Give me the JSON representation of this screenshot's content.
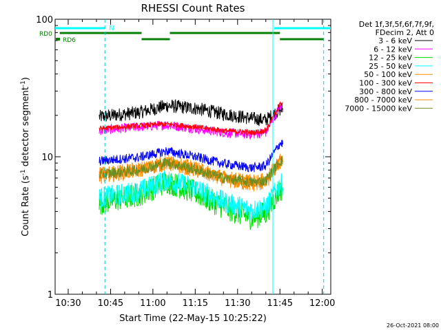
{
  "chart_data": {
    "type": "line",
    "title": "RHESSI Count Rates",
    "xlabel": "Start Time (22-May-15 10:25:22)",
    "ylabel_main": "Count Rate (s",
    "ylabel_exp1": "-1",
    "ylabel_mid": " detector segment",
    "ylabel_exp2": "-1",
    "ylabel_end": ")",
    "yscale": "log",
    "ylim": [
      1,
      100
    ],
    "xlim": [
      "10:25:22",
      "12:03:00"
    ],
    "x_ticks": [
      "10:30",
      "10:45",
      "11:00",
      "11:15",
      "11:30",
      "11:45",
      "12:00"
    ],
    "y_ticks": [
      "1",
      "10",
      "100"
    ],
    "legend_header": [
      "Det 1f,3f,5f,6f,7f,9f,",
      "FDecim 2, Att 0"
    ],
    "legend_position": "right",
    "footer_date": "26-Oct-2021 08:00",
    "data_start": "10:41:00",
    "data_end": "11:46:00",
    "night_intervals": [
      [
        "10:25:22",
        "10:43:00"
      ],
      [
        "11:43:00",
        "12:03:00"
      ]
    ],
    "night_label": "N",
    "attenuator_lines": [
      "10:43:00",
      "12:00:30"
    ],
    "cyan_solid_line": "11:42:30",
    "rd0_label": "RD0",
    "rd6_label": "RD6",
    "rd0_segments": [
      [
        "10:27:00",
        "10:56:00"
      ],
      [
        "11:06:00",
        "11:45:00"
      ]
    ],
    "rd6_segments": [
      [
        "10:56:00",
        "11:06:00"
      ],
      [
        "11:45:00",
        "12:00:30"
      ]
    ],
    "series": [
      {
        "name": "3 - 6 keV",
        "color": "#000000",
        "key_x": [
          "10:41",
          "10:55",
          "11:05",
          "11:15",
          "11:25",
          "11:35",
          "11:40",
          "11:45"
        ],
        "key_y": [
          19.5,
          21.0,
          23.5,
          22.5,
          20.5,
          19.0,
          18.5,
          22.0
        ],
        "noise": 0.05
      },
      {
        "name": "6 - 12 keV",
        "color": "#ff00ff",
        "key_x": [
          "10:41",
          "10:55",
          "11:05",
          "11:15",
          "11:25",
          "11:35",
          "11:40",
          "11:45"
        ],
        "key_y": [
          15.5,
          16.5,
          17.0,
          16.0,
          15.0,
          14.5,
          15.0,
          23.0
        ],
        "noise": 0.035
      },
      {
        "name": "12 - 25 keV",
        "color": "#00dd00",
        "key_x": [
          "10:41",
          "10:55",
          "11:05",
          "11:15",
          "11:25",
          "11:35",
          "11:40",
          "11:45"
        ],
        "key_y": [
          4.6,
          5.3,
          6.6,
          5.5,
          4.3,
          3.6,
          3.9,
          5.8
        ],
        "noise": 0.09
      },
      {
        "name": "25 - 50 keV",
        "color": "#00ffff",
        "key_x": [
          "10:41",
          "10:55",
          "11:05",
          "11:15",
          "11:25",
          "11:35",
          "11:40",
          "11:45"
        ],
        "key_y": [
          5.0,
          5.6,
          6.8,
          5.9,
          4.7,
          4.1,
          4.3,
          6.3
        ],
        "noise": 0.08
      },
      {
        "name": "50 - 100 keV",
        "color": "#ff8c00",
        "key_x": [
          "10:41",
          "10:55",
          "11:05",
          "11:15",
          "11:25",
          "11:35",
          "11:40",
          "11:45"
        ],
        "key_y": [
          7.1,
          7.9,
          8.9,
          7.9,
          6.8,
          6.2,
          6.4,
          9.0
        ],
        "noise": 0.05
      },
      {
        "name": "100 - 300 keV",
        "color": "#ff0000",
        "key_x": [
          "10:41",
          "10:55",
          "11:05",
          "11:15",
          "11:25",
          "11:35",
          "11:40",
          "11:45"
        ],
        "key_y": [
          16.0,
          16.8,
          17.3,
          16.5,
          15.5,
          15.0,
          15.5,
          24.0
        ],
        "noise": 0.02
      },
      {
        "name": "300 - 800 keV",
        "color": "#0000ff",
        "key_x": [
          "10:41",
          "10:55",
          "11:05",
          "11:15",
          "11:25",
          "11:35",
          "11:40",
          "11:45"
        ],
        "key_y": [
          9.3,
          9.9,
          11.0,
          10.0,
          8.9,
          8.3,
          8.6,
          12.5
        ],
        "noise": 0.035
      },
      {
        "name": "800 - 7000 keV",
        "color": "#ff8c00",
        "key_x": [
          "10:41",
          "10:55",
          "11:05",
          "11:15",
          "11:25",
          "11:35",
          "11:40",
          "11:45"
        ],
        "key_y": [
          7.6,
          8.3,
          9.4,
          8.4,
          7.2,
          6.7,
          6.9,
          9.6
        ],
        "noise": 0.045
      },
      {
        "name": "7000 - 15000 keV",
        "color": "#6b8e23",
        "key_x": [
          "10:41",
          "10:55",
          "11:05",
          "11:15",
          "11:25",
          "11:35",
          "11:40",
          "11:45"
        ],
        "key_y": [
          7.4,
          8.0,
          9.1,
          8.1,
          7.0,
          6.5,
          6.7,
          9.3
        ],
        "noise": 0.04
      }
    ]
  }
}
